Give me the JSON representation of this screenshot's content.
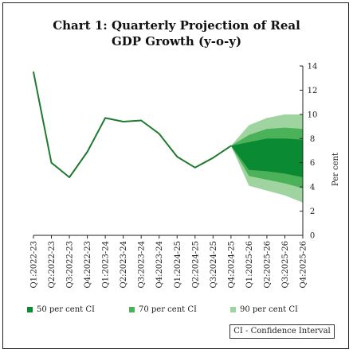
{
  "chart_data": {
    "type": "line",
    "title_lines": [
      "Chart 1: Quarterly Projection of Real",
      "GDP Growth (y-o-y)"
    ],
    "xlabel": "",
    "ylabel": "Per cent",
    "ylim": [
      0,
      14
    ],
    "yticks": [
      0,
      2,
      4,
      6,
      8,
      10,
      12,
      14
    ],
    "categories": [
      "Q1:2022-23",
      "Q2:2022-23",
      "Q3:2022-23",
      "Q4:2022-23",
      "Q1:2023-24",
      "Q2:2023-24",
      "Q3:2023-24",
      "Q4:2023-24",
      "Q1:2024-25",
      "Q2:2024-25",
      "Q3:2024-25",
      "Q4:2024-25",
      "Q1:2025-26",
      "Q2:2025-26",
      "Q3:2025-26",
      "Q4:2025-26"
    ],
    "actual": [
      13.5,
      6.0,
      4.8,
      6.9,
      9.7,
      9.4,
      9.5,
      8.4,
      6.5,
      5.6,
      6.4,
      7.4
    ],
    "forecast_start_index": 11,
    "bands": [
      {
        "name": "90 per cent CI",
        "color": "#9fd39f",
        "lower": [
          7.4,
          4.1,
          3.7,
          3.3,
          2.7
        ],
        "upper": [
          7.4,
          9.1,
          9.7,
          10.0,
          10.0
        ]
      },
      {
        "name": "70 per cent CI",
        "color": "#4cb25a",
        "lower": [
          7.4,
          4.9,
          4.6,
          4.3,
          3.9
        ],
        "upper": [
          7.4,
          8.3,
          8.8,
          8.9,
          8.8
        ]
      },
      {
        "name": "50 per cent CI",
        "color": "#0b8a34",
        "lower": [
          7.4,
          5.4,
          5.3,
          5.1,
          4.8
        ],
        "upper": [
          7.4,
          7.7,
          8.0,
          8.0,
          7.9
        ]
      }
    ],
    "line_color": "#1f7a2e",
    "grid": false,
    "legend_position": "bottom",
    "legend": [
      {
        "label": "50 per cent CI",
        "color": "#0b8a34"
      },
      {
        "label": "70 per cent CI",
        "color": "#4cb25a"
      },
      {
        "label": "90 per cent CI",
        "color": "#9fd39f"
      }
    ],
    "note": "CI - Confidence Interval"
  }
}
